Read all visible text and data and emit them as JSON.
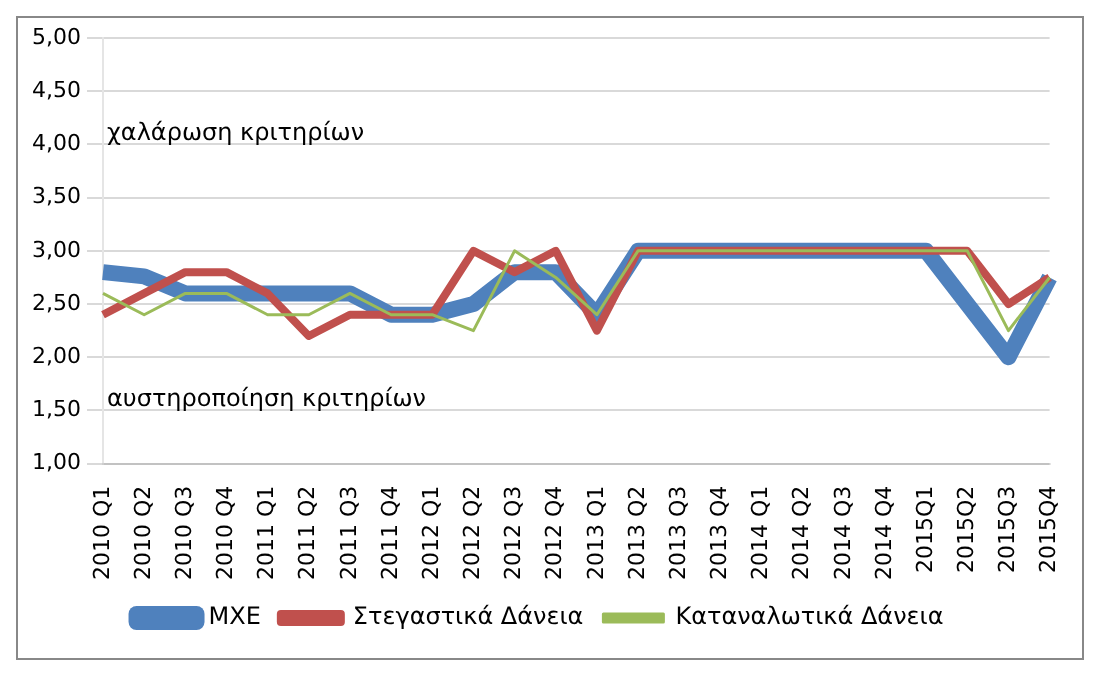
{
  "chart_data": {
    "type": "line",
    "categories": [
      "2010 Q1",
      "2010 Q2",
      "2010 Q3",
      "2010 Q4",
      "2011 Q1",
      "2011 Q2",
      "2011 Q3",
      "2011 Q4",
      "2012 Q1",
      "2012 Q2",
      "2012 Q3",
      "2012 Q4",
      "2013 Q1",
      "2013 Q2",
      "2013 Q3",
      "2013 Q4",
      "2014 Q1",
      "2014 Q2",
      "2014 Q3",
      "2014 Q4",
      "2015Q1",
      "2015Q2",
      "2015Q3",
      "2015Q4"
    ],
    "series": [
      {
        "name": "ΜΧΕ",
        "color": "#4f81bd",
        "values": [
          2.8,
          2.76,
          2.6,
          2.6,
          2.6,
          2.6,
          2.6,
          2.4,
          2.4,
          2.5,
          2.8,
          2.8,
          2.4,
          3,
          3,
          3,
          3,
          3,
          3,
          3,
          3,
          2.5,
          2,
          2.75
        ]
      },
      {
        "name": "Στεγαστικά Δάνεια",
        "color": "#c0504d",
        "values": [
          2.4,
          2.6,
          2.8,
          2.8,
          2.6,
          2.2,
          2.4,
          2.4,
          2.4,
          3,
          2.8,
          3,
          2.25,
          3,
          3,
          3,
          3,
          3,
          3,
          3,
          3,
          3,
          2.5,
          2.75
        ]
      },
      {
        "name": "Καταναλωτικά Δάνεια",
        "color": "#9bbb59",
        "values": [
          2.6,
          2.4,
          2.6,
          2.6,
          2.4,
          2.4,
          2.6,
          2.4,
          2.4,
          2.25,
          3,
          2.75,
          2.4,
          3,
          3,
          3,
          3,
          3,
          3,
          3,
          3,
          3,
          2.25,
          2.75
        ]
      }
    ],
    "ylim": [
      1,
      5
    ],
    "yticks": [
      {
        "value": 1,
        "label": "1,00"
      },
      {
        "value": 1.5,
        "label": "1,50"
      },
      {
        "value": 2,
        "label": "2,00"
      },
      {
        "value": 2.5,
        "label": "2,50"
      },
      {
        "value": 3,
        "label": "3,00"
      },
      {
        "value": 3.5,
        "label": "3,50"
      },
      {
        "value": 4,
        "label": "4,00"
      },
      {
        "value": 4.5,
        "label": "4,50"
      },
      {
        "value": 5,
        "label": "5,00"
      }
    ],
    "annotations": [
      "χαλάρωση κριτηρίων",
      "αυστηροποίηση κριτηρίων"
    ],
    "grid": "y",
    "legend": "bottom",
    "marker": "none",
    "line_style": "solid"
  }
}
